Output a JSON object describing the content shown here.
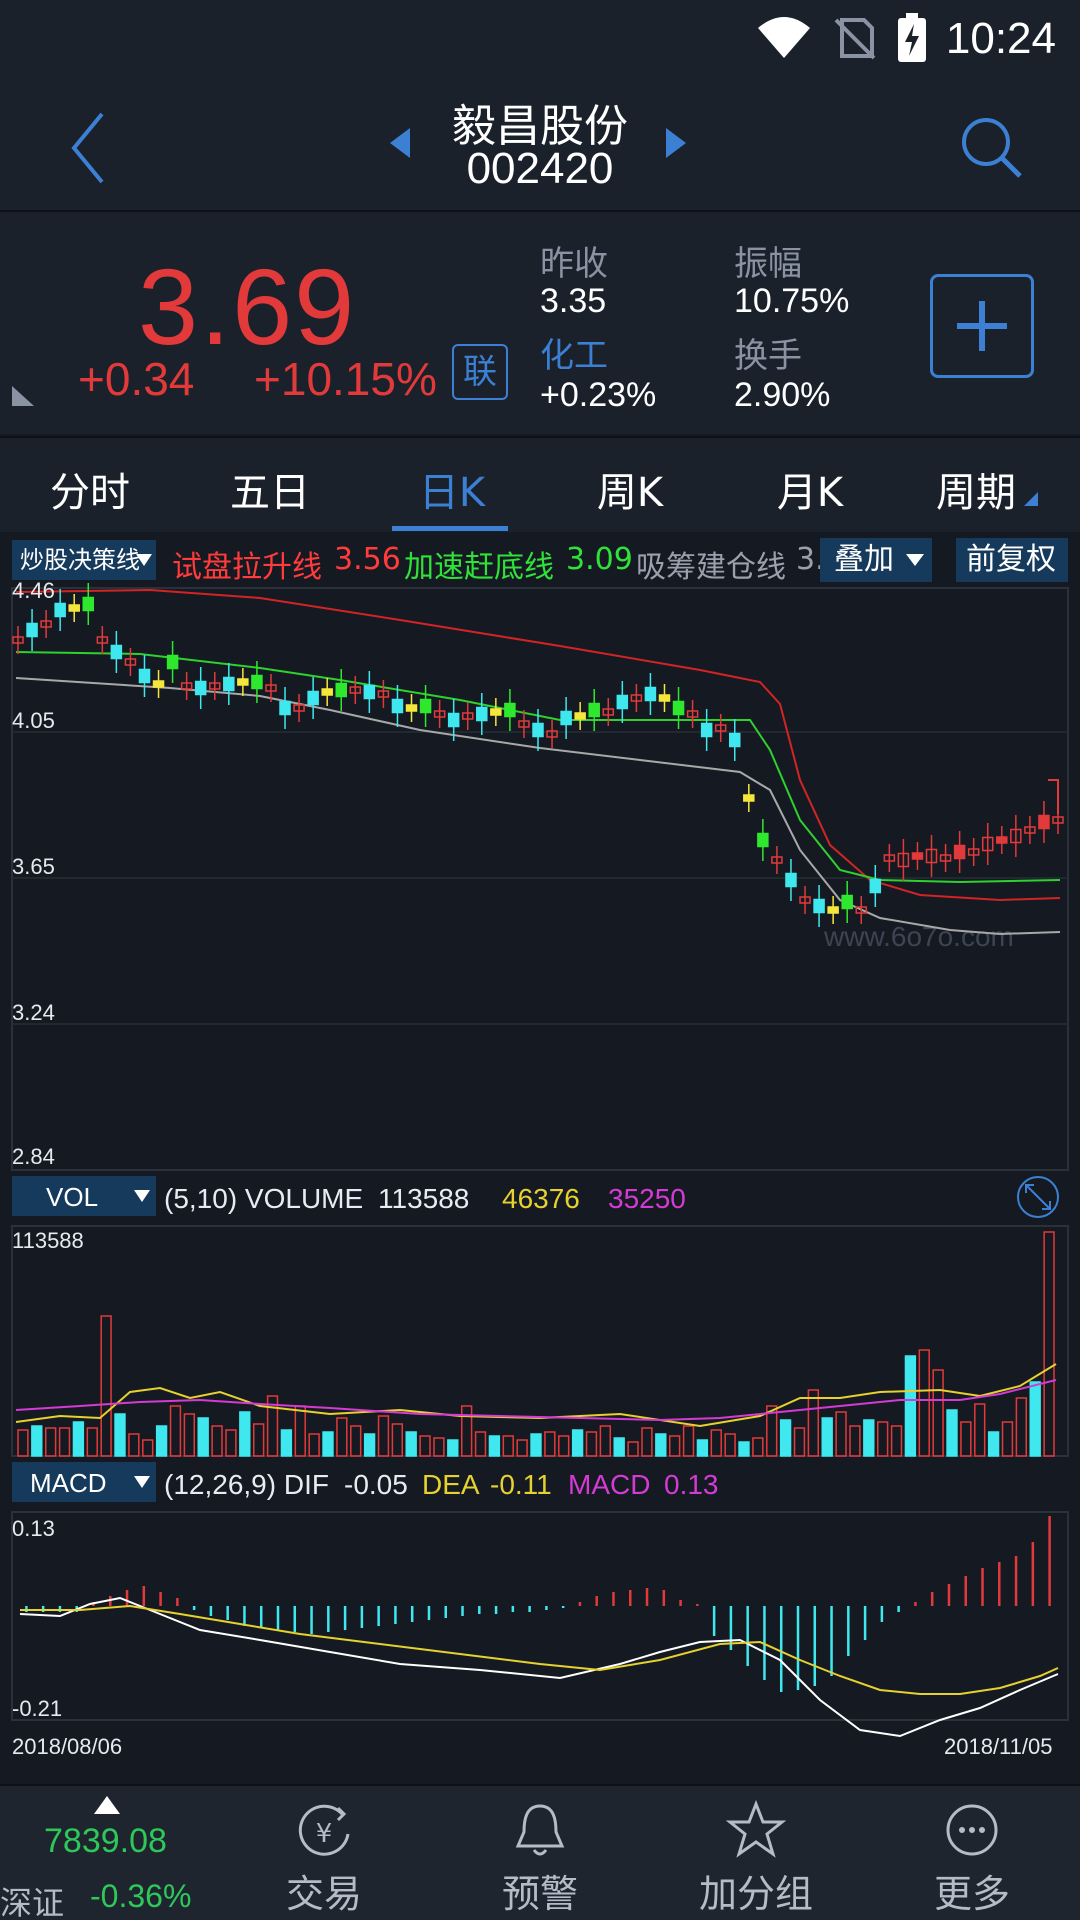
{
  "status_bar": {
    "time": "10:24"
  },
  "header": {
    "name": "毅昌股份",
    "code": "002420"
  },
  "quote": {
    "price": "3.69",
    "change": "+0.34",
    "change_pct": "+10.15%",
    "lian_label": "联",
    "prev_close_label": "昨收",
    "prev_close": "3.35",
    "amplitude_label": "振幅",
    "amplitude": "10.75%",
    "sector_label": "化工",
    "sector_change": "+0.23%",
    "turnover_label": "换手",
    "turnover": "2.90%",
    "up_color": "#e23a3a",
    "accent_color": "#3c80d4"
  },
  "tabs": [
    {
      "label": "分时"
    },
    {
      "label": "五日"
    },
    {
      "label": "日K"
    },
    {
      "label": "周K"
    },
    {
      "label": "月K"
    },
    {
      "label": "周期"
    }
  ],
  "indicator": {
    "dropdown": "炒股决策线",
    "line1_label": "试盘拉升线",
    "line1_value": "3.56",
    "line2_label": "加速赶底线",
    "line2_value": "3.09",
    "line3_label": "吸筹建仓线",
    "line3_value": "3.",
    "overlay_btn": "叠加",
    "adjust_btn": "前复权"
  },
  "price_axis": {
    "top": "4.46",
    "l2": "4.05",
    "l3": "3.65",
    "l4": "3.24",
    "bottom": "2.84"
  },
  "watermark": "www.6o7o.com",
  "volume": {
    "dropdown": "VOL",
    "params": "(5,10) VOLUME",
    "value": "113588",
    "ma5": "46376",
    "ma10": "35250",
    "axis_top": "113588"
  },
  "macd": {
    "dropdown": "MACD",
    "params": "(12,26,9) DIF",
    "dif": "-0.05",
    "dea_label": "DEA",
    "dea": "-0.11",
    "macd_label": "MACD",
    "macd_value": "0.13",
    "axis_top": "0.13",
    "axis_bottom": "-0.21"
  },
  "dates": {
    "start": "2018/08/06",
    "end": "2018/11/05"
  },
  "bottom_nav": {
    "index_value": "7839.08",
    "index_name": "深证",
    "index_change": "-0.36%",
    "items": [
      {
        "label": "交易",
        "icon": "yen-exchange-icon"
      },
      {
        "label": "预警",
        "icon": "bell-icon"
      },
      {
        "label": "加分组",
        "icon": "star-icon"
      },
      {
        "label": "更多",
        "icon": "more-icon"
      }
    ]
  }
}
